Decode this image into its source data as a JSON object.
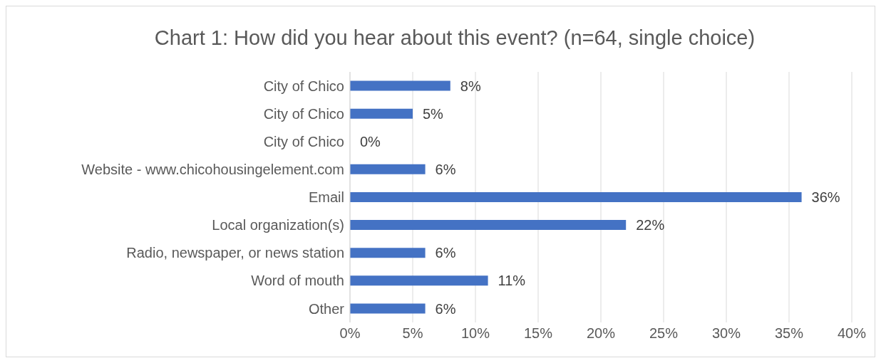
{
  "chart_data": {
    "type": "bar",
    "orientation": "horizontal",
    "title": "Chart 1: How did you hear about this event? (n=64, single choice)",
    "categories": [
      "City of Chico",
      "City of Chico",
      "City of Chico",
      "Website - www.chicohousingelement.com",
      "Email",
      "Local organization(s)",
      "Radio, newspaper, or news station",
      "Word of mouth",
      "Other"
    ],
    "values": [
      8,
      5,
      0,
      6,
      36,
      22,
      6,
      11,
      6
    ],
    "value_labels": [
      "8%",
      "5%",
      "0%",
      "6%",
      "36%",
      "22%",
      "6%",
      "11%",
      "6%"
    ],
    "color": "#4472c4",
    "xlim": [
      0,
      40
    ],
    "xticks": [
      {
        "value": 0,
        "label": "0%"
      },
      {
        "value": 5,
        "label": "5%"
      },
      {
        "value": 10,
        "label": "10%"
      },
      {
        "value": 15,
        "label": "15%"
      },
      {
        "value": 20,
        "label": "20%"
      },
      {
        "value": 25,
        "label": "25%"
      },
      {
        "value": 30,
        "label": "30%"
      },
      {
        "value": 35,
        "label": "35%"
      },
      {
        "value": 40,
        "label": "40%"
      }
    ],
    "grid": "x",
    "legend": false
  }
}
